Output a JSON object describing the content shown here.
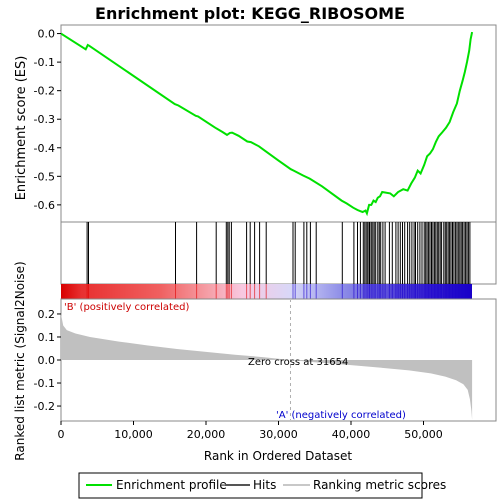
{
  "chart_data": {
    "type": "line",
    "title": "Enrichment plot: KEGG_RIBOSOME",
    "top_panel": {
      "ylabel": "Enrichment score (ES)",
      "ylim": [
        -0.66,
        0.03
      ],
      "yticks": [
        0.0,
        -0.1,
        -0.2,
        -0.3,
        -0.4,
        -0.5,
        -0.6
      ],
      "ytick_labels": [
        "0.0",
        "-0.1",
        "-0.2",
        "-0.3",
        "-0.4",
        "-0.5",
        "-0.6"
      ],
      "series": [
        {
          "name": "Enrichment profile",
          "color": "#00e000",
          "x": [
            0,
            3400,
            3700,
            3900,
            15700,
            16200,
            18600,
            18900,
            21300,
            22300,
            22900,
            23300,
            23600,
            24500,
            25700,
            26200,
            27300,
            28100,
            30000,
            31700,
            32100,
            33400,
            34300,
            36000,
            38700,
            39400,
            40300,
            40900,
            41300,
            41600,
            42000,
            42200,
            42500,
            42800,
            43100,
            43400,
            43700,
            44000,
            44300,
            45400,
            45900,
            46500,
            47200,
            47800,
            48300,
            48800,
            49200,
            49600,
            50100,
            50500,
            50900,
            51300,
            51700,
            52100,
            52600,
            53100,
            53600,
            54100,
            54600,
            55000,
            55400,
            55700,
            56000,
            56300,
            56500,
            56700
          ],
          "y": [
            0.0,
            -0.055,
            -0.04,
            -0.043,
            -0.247,
            -0.252,
            -0.288,
            -0.29,
            -0.33,
            -0.345,
            -0.355,
            -0.348,
            -0.347,
            -0.358,
            -0.378,
            -0.38,
            -0.395,
            -0.41,
            -0.445,
            -0.475,
            -0.48,
            -0.497,
            -0.508,
            -0.535,
            -0.585,
            -0.595,
            -0.61,
            -0.618,
            -0.622,
            -0.625,
            -0.62,
            -0.63,
            -0.6,
            -0.6,
            -0.585,
            -0.59,
            -0.575,
            -0.57,
            -0.555,
            -0.56,
            -0.57,
            -0.555,
            -0.545,
            -0.55,
            -0.525,
            -0.505,
            -0.48,
            -0.49,
            -0.46,
            -0.43,
            -0.42,
            -0.405,
            -0.38,
            -0.36,
            -0.345,
            -0.33,
            -0.31,
            -0.275,
            -0.245,
            -0.2,
            -0.165,
            -0.135,
            -0.1,
            -0.06,
            -0.02,
            0.005
          ]
        }
      ]
    },
    "hits": {
      "name": "Hits",
      "color": "#000000",
      "positions": [
        3600,
        3800,
        15800,
        18700,
        21400,
        22800,
        23000,
        23200,
        23500,
        25600,
        26100,
        26700,
        27400,
        28300,
        32000,
        32300,
        33500,
        33900,
        34400,
        35200,
        38800,
        40400,
        40900,
        41300,
        41700,
        41900,
        42100,
        42300,
        42500,
        42600,
        42800,
        43000,
        43200,
        43400,
        43700,
        43900,
        44100,
        44400,
        44700,
        45300,
        45700,
        46200,
        46500,
        46800,
        47100,
        47400,
        47800,
        48100,
        48400,
        48700,
        48900,
        49200,
        49500,
        49800,
        50100,
        50300,
        50500,
        50700,
        50900,
        51100,
        51300,
        51500,
        51700,
        51900,
        52100,
        52300,
        52500,
        52800,
        53000,
        53200,
        53400,
        53600,
        53800,
        54000,
        54200,
        54400,
        54600,
        54800,
        55000,
        55200,
        55400,
        55600,
        55800,
        56000,
        56200,
        56400
      ]
    },
    "ranking_panel": {
      "name": "Ranking metric scores",
      "xlabel": "Rank in Ordered Dataset",
      "ylabel": "Ranked list metric (Signal2Noise)",
      "ylim": [
        -0.265,
        0.265
      ],
      "yticks": [
        0.2,
        0.1,
        0.0,
        -0.1,
        -0.2
      ],
      "ytick_labels": [
        "0.2",
        "0.1",
        "0.0",
        "-0.1",
        "-0.2"
      ],
      "x": [
        0,
        300,
        800,
        2000,
        4000,
        8000,
        12000,
        16000,
        20000,
        24000,
        28000,
        31654,
        35000,
        40000,
        44000,
        48000,
        51000,
        53000,
        54500,
        55500,
        56100,
        56400,
        56600,
        56700
      ],
      "y": [
        0.2,
        0.15,
        0.13,
        0.115,
        0.1,
        0.08,
        0.063,
        0.048,
        0.035,
        0.023,
        0.012,
        0.0,
        -0.01,
        -0.022,
        -0.033,
        -0.045,
        -0.058,
        -0.072,
        -0.088,
        -0.105,
        -0.13,
        -0.17,
        -0.22,
        -0.26
      ],
      "annotations": {
        "pos_label": "'B' (positively correlated)",
        "neg_label": "'A' (negatively correlated)",
        "zero_cross": "Zero cross at 31654",
        "zero_cross_x": 31654
      }
    },
    "x_axis": {
      "xlim": [
        0,
        60000
      ],
      "ticks": [
        0,
        10000,
        20000,
        30000,
        40000,
        50000
      ],
      "tick_labels": [
        "0",
        "10,000",
        "20,000",
        "30,000",
        "40,000",
        "50,000"
      ],
      "n_genes": 56700
    },
    "colors": {
      "profile": "#00e000",
      "hit": "#000000",
      "ranking_fill": "#c0c0c0",
      "pos_label": "#cc0000",
      "neg_label": "#0000cc",
      "zero_line": "#b0b0b0",
      "bar_red": "#e00000",
      "bar_blue": "#1a00cc"
    },
    "legend": {
      "placement": "bottom",
      "items": [
        {
          "label": "Enrichment profile",
          "color": "#00e000"
        },
        {
          "label": "Hits",
          "color": "#555555"
        },
        {
          "label": "Ranking metric scores",
          "color": "#c8c8c8"
        }
      ]
    }
  }
}
